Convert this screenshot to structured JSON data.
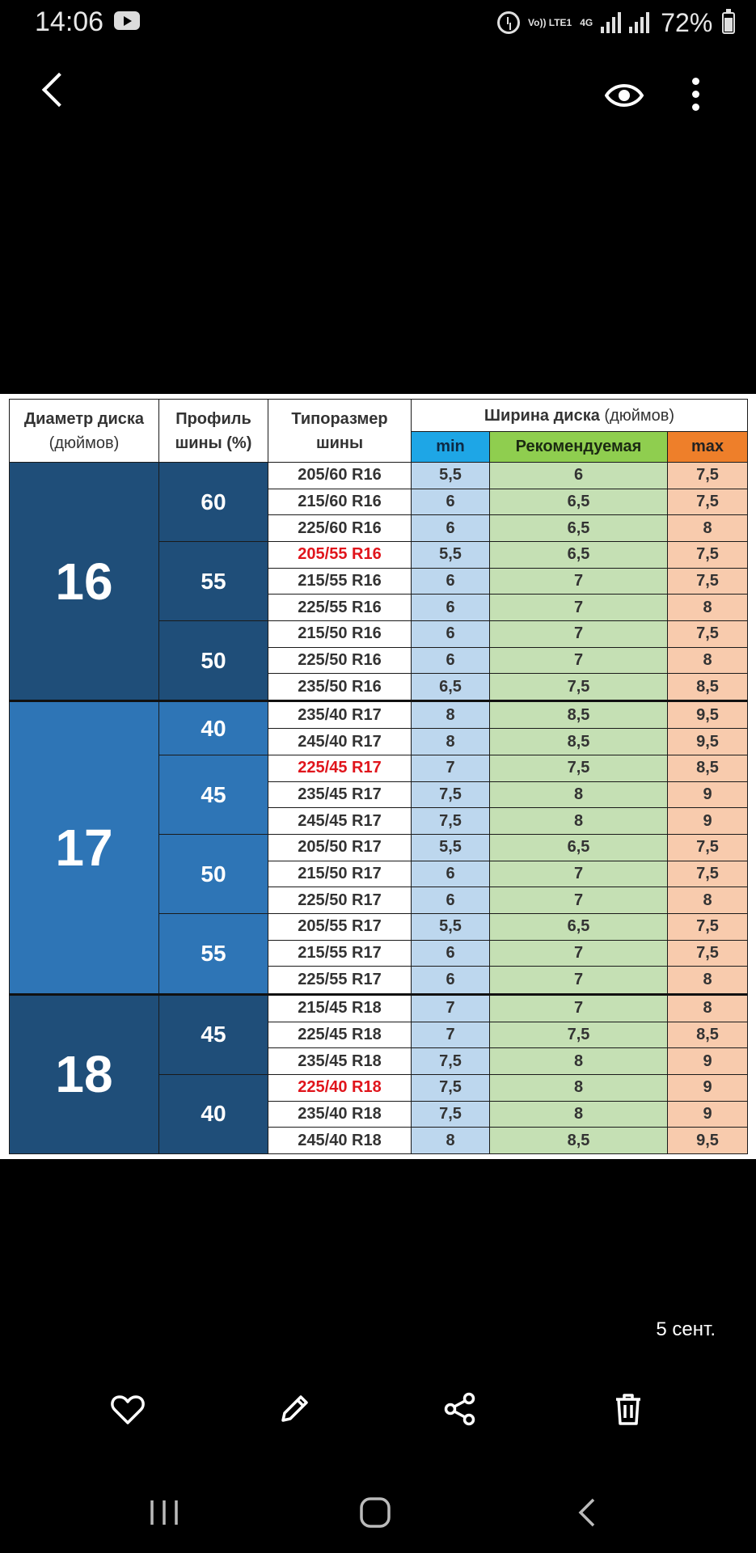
{
  "status_bar": {
    "time": "14:06",
    "network_volte": "Vo)) LTE1",
    "network_gen": "4G",
    "battery": "72%"
  },
  "toolbar": {
    "back_icon": "chevron-left-icon",
    "view_icon": "eye-icon",
    "more_icon": "more-vertical-icon"
  },
  "table": {
    "headers": {
      "diameter": "Диаметр диска",
      "diameter_unit": "(дюймов)",
      "profile": "Профиль",
      "profile_unit": "шины (%)",
      "size": "Типоразмер",
      "size_unit": "шины",
      "width": "Ширина диска",
      "width_unit": "(дюймов)",
      "min": "min",
      "recommended": "Рекомендуемая",
      "max": "max"
    },
    "groups": [
      {
        "diameter": "16",
        "profiles": [
          {
            "profile": "60",
            "rows": [
              {
                "size": "205/60 R16",
                "min": "5,5",
                "rec": "6",
                "max": "7,5"
              },
              {
                "size": "215/60 R16",
                "min": "6",
                "rec": "6,5",
                "max": "7,5"
              },
              {
                "size": "225/60 R16",
                "min": "6",
                "rec": "6,5",
                "max": "8"
              }
            ]
          },
          {
            "profile": "55",
            "rows": [
              {
                "size": "205/55 R16",
                "min": "5,5",
                "rec": "6,5",
                "max": "7,5",
                "highlight": true
              },
              {
                "size": "215/55 R16",
                "min": "6",
                "rec": "7",
                "max": "7,5"
              },
              {
                "size": "225/55 R16",
                "min": "6",
                "rec": "7",
                "max": "8"
              }
            ]
          },
          {
            "profile": "50",
            "rows": [
              {
                "size": "215/50 R16",
                "min": "6",
                "rec": "7",
                "max": "7,5"
              },
              {
                "size": "225/50 R16",
                "min": "6",
                "rec": "7",
                "max": "8"
              },
              {
                "size": "235/50 R16",
                "min": "6,5",
                "rec": "7,5",
                "max": "8,5"
              }
            ]
          }
        ]
      },
      {
        "diameter": "17",
        "profiles": [
          {
            "profile": "40",
            "rows": [
              {
                "size": "235/40 R17",
                "min": "8",
                "rec": "8,5",
                "max": "9,5"
              },
              {
                "size": "245/40 R17",
                "min": "8",
                "rec": "8,5",
                "max": "9,5"
              }
            ]
          },
          {
            "profile": "45",
            "rows": [
              {
                "size": "225/45 R17",
                "min": "7",
                "rec": "7,5",
                "max": "8,5",
                "highlight": true
              },
              {
                "size": "235/45 R17",
                "min": "7,5",
                "rec": "8",
                "max": "9"
              },
              {
                "size": "245/45 R17",
                "min": "7,5",
                "rec": "8",
                "max": "9"
              }
            ]
          },
          {
            "profile": "50",
            "rows": [
              {
                "size": "205/50 R17",
                "min": "5,5",
                "rec": "6,5",
                "max": "7,5"
              },
              {
                "size": "215/50 R17",
                "min": "6",
                "rec": "7",
                "max": "7,5"
              },
              {
                "size": "225/50 R17",
                "min": "6",
                "rec": "7",
                "max": "8"
              }
            ]
          },
          {
            "profile": "55",
            "rows": [
              {
                "size": "205/55 R17",
                "min": "5,5",
                "rec": "6,5",
                "max": "7,5"
              },
              {
                "size": "215/55 R17",
                "min": "6",
                "rec": "7",
                "max": "7,5"
              },
              {
                "size": "225/55 R17",
                "min": "6",
                "rec": "7",
                "max": "8"
              }
            ]
          }
        ]
      },
      {
        "diameter": "18",
        "profiles": [
          {
            "profile": "45",
            "rows": [
              {
                "size": "215/45 R18",
                "min": "7",
                "rec": "7",
                "max": "8"
              },
              {
                "size": "225/45 R18",
                "min": "7",
                "rec": "7,5",
                "max": "8,5"
              },
              {
                "size": "235/45 R18",
                "min": "7,5",
                "rec": "8",
                "max": "9"
              }
            ]
          },
          {
            "profile": "40",
            "rows": [
              {
                "size": "225/40 R18",
                "min": "7,5",
                "rec": "8",
                "max": "9",
                "highlight": true
              },
              {
                "size": "235/40 R18",
                "min": "7,5",
                "rec": "8",
                "max": "9"
              },
              {
                "size": "245/40 R18",
                "min": "8",
                "rec": "8,5",
                "max": "9,5"
              }
            ]
          }
        ]
      }
    ]
  },
  "date": "5 сент.",
  "actions": {
    "favorite_icon": "heart-icon",
    "edit_icon": "pencil-icon",
    "share_icon": "share-icon",
    "delete_icon": "trash-icon"
  },
  "navbar": {
    "recents_icon": "recents-icon",
    "home_icon": "home-icon",
    "back_icon": "back-icon"
  }
}
